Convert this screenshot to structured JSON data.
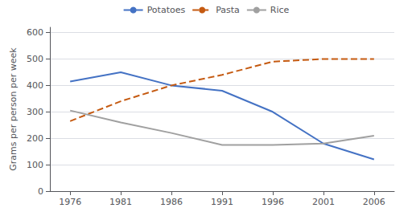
{
  "chart_data": {
    "type": "line",
    "x": [
      1976,
      1981,
      1986,
      1991,
      1996,
      2001,
      2006
    ],
    "xlim": [
      1974,
      2008
    ],
    "xticks": [
      1976,
      1981,
      1986,
      1991,
      1996,
      2001,
      2006
    ],
    "ylabel": "Grams per person per week",
    "ylim": [
      0,
      620
    ],
    "yticks": [
      0,
      100,
      200,
      300,
      400,
      500,
      600
    ],
    "grid": true,
    "legend": "top",
    "series": [
      {
        "name": "Potatoes",
        "color": "#4472C4",
        "line_style": "solid",
        "values": [
          415,
          450,
          400,
          380,
          300,
          180,
          120
        ]
      },
      {
        "name": "Pasta",
        "color": "#C55A11",
        "line_style": "dashed",
        "values": [
          265,
          340,
          400,
          440,
          490,
          500,
          500
        ]
      },
      {
        "name": "Rice",
        "color": "#A0A0A0",
        "line_style": "solid",
        "values": [
          305,
          260,
          220,
          175,
          175,
          180,
          210
        ]
      }
    ]
  }
}
